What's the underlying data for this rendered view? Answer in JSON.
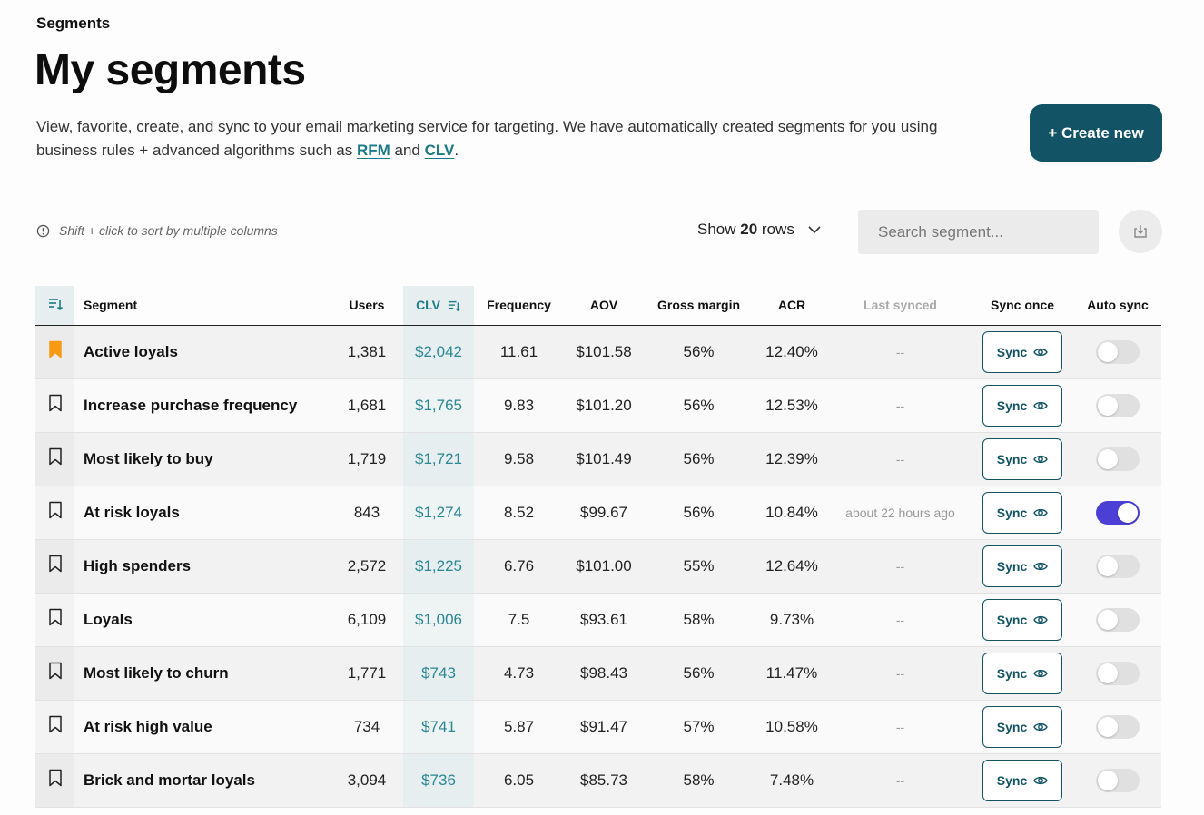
{
  "breadcrumb": "Segments",
  "title": "My segments",
  "description": {
    "text_before": "View, favorite, create, and sync to your email marketing service for targeting. We have automatically created segments for you using business rules + advanced algorithms such as ",
    "link1": "RFM",
    "between": " and ",
    "link2": "CLV",
    "after": "."
  },
  "create_button": "+ Create new",
  "hint": "Shift + click to sort by multiple columns",
  "rows_select": {
    "prefix": "Show",
    "value": "20",
    "suffix": "rows"
  },
  "search": {
    "placeholder": "Search segment...",
    "value": ""
  },
  "columns": {
    "segment": "Segment",
    "users": "Users",
    "clv": "CLV",
    "frequency": "Frequency",
    "aov": "AOV",
    "gross_margin": "Gross margin",
    "acr": "ACR",
    "last_synced": "Last synced",
    "sync_once": "Sync once",
    "auto_sync": "Auto sync"
  },
  "sync_label": "Sync",
  "colors": {
    "accent": "#125466",
    "clv": "#2b8793",
    "bookmark_active": "#f59a12",
    "toggle_on": "#4b3fd6"
  },
  "rows": [
    {
      "segment": "Active loyals",
      "users": "1,381",
      "clv": "$2,042",
      "frequency": "11.61",
      "aov": "$101.58",
      "gross_margin": "56%",
      "acr": "12.40%",
      "last_synced": "--",
      "favorite": true,
      "auto_sync": false
    },
    {
      "segment": "Increase purchase frequency",
      "users": "1,681",
      "clv": "$1,765",
      "frequency": "9.83",
      "aov": "$101.20",
      "gross_margin": "56%",
      "acr": "12.53%",
      "last_synced": "--",
      "favorite": false,
      "auto_sync": false
    },
    {
      "segment": "Most likely to buy",
      "users": "1,719",
      "clv": "$1,721",
      "frequency": "9.58",
      "aov": "$101.49",
      "gross_margin": "56%",
      "acr": "12.39%",
      "last_synced": "--",
      "favorite": false,
      "auto_sync": false
    },
    {
      "segment": "At risk loyals",
      "users": "843",
      "clv": "$1,274",
      "frequency": "8.52",
      "aov": "$99.67",
      "gross_margin": "56%",
      "acr": "10.84%",
      "last_synced": "about 22 hours ago",
      "favorite": false,
      "auto_sync": true
    },
    {
      "segment": "High spenders",
      "users": "2,572",
      "clv": "$1,225",
      "frequency": "6.76",
      "aov": "$101.00",
      "gross_margin": "55%",
      "acr": "12.64%",
      "last_synced": "--",
      "favorite": false,
      "auto_sync": false
    },
    {
      "segment": "Loyals",
      "users": "6,109",
      "clv": "$1,006",
      "frequency": "7.5",
      "aov": "$93.61",
      "gross_margin": "58%",
      "acr": "9.73%",
      "last_synced": "--",
      "favorite": false,
      "auto_sync": false
    },
    {
      "segment": "Most likely to churn",
      "users": "1,771",
      "clv": "$743",
      "frequency": "4.73",
      "aov": "$98.43",
      "gross_margin": "56%",
      "acr": "11.47%",
      "last_synced": "--",
      "favorite": false,
      "auto_sync": false
    },
    {
      "segment": "At risk high value",
      "users": "734",
      "clv": "$741",
      "frequency": "5.87",
      "aov": "$91.47",
      "gross_margin": "57%",
      "acr": "10.58%",
      "last_synced": "--",
      "favorite": false,
      "auto_sync": false
    },
    {
      "segment": "Brick and mortar loyals",
      "users": "3,094",
      "clv": "$736",
      "frequency": "6.05",
      "aov": "$85.73",
      "gross_margin": "58%",
      "acr": "7.48%",
      "last_synced": "--",
      "favorite": false,
      "auto_sync": false
    }
  ]
}
